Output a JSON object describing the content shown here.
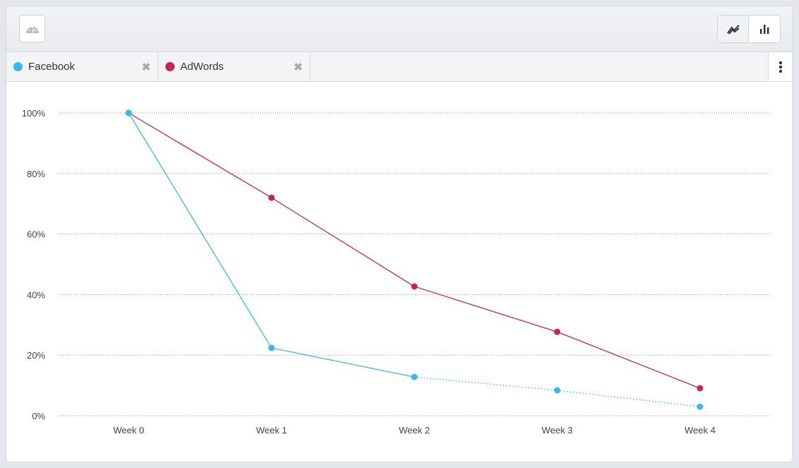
{
  "toolbar": {
    "gauge_icon": "dashboard-gauge-icon",
    "view_modes": [
      {
        "icon": "line-chart-icon",
        "active": true
      },
      {
        "icon": "bar-chart-icon",
        "active": false
      }
    ]
  },
  "tabs": [
    {
      "label": "Facebook",
      "color": "#3bb8ea"
    },
    {
      "label": "AdWords",
      "color": "#c0284f"
    }
  ],
  "more_icon": "vertical-ellipsis-icon",
  "chart_data": {
    "type": "line",
    "categories": [
      "Week 0",
      "Week 1",
      "Week 2",
      "Week 3",
      "Week 4"
    ],
    "y_ticks": [
      "0%",
      "20%",
      "40%",
      "60%",
      "80%",
      "100%"
    ],
    "ylim": [
      0,
      100
    ],
    "grid": true,
    "series": [
      {
        "name": "Facebook",
        "color": "#3bb8ea",
        "values": [
          100,
          22.4,
          12.8,
          8.4,
          3.0
        ],
        "dotted_from_index": 2
      },
      {
        "name": "AdWords",
        "color": "#c0284f",
        "values": [
          100,
          72.0,
          42.7,
          27.7,
          9.1
        ]
      }
    ]
  }
}
